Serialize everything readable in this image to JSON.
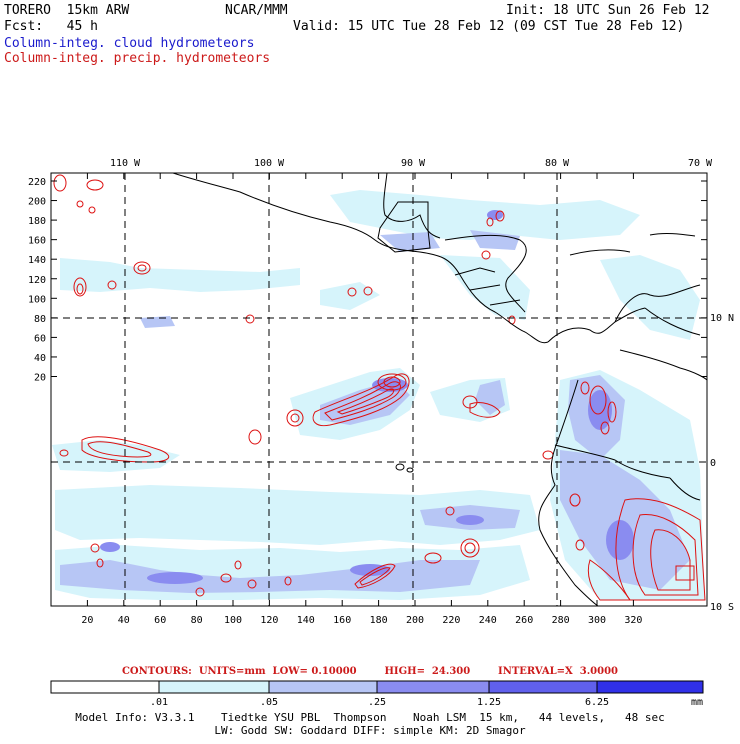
{
  "header": {
    "model": "TORERO  15km ARW",
    "org": "NCAR/MMM",
    "init": "Init: 18 UTC Sun 26 Feb 12",
    "fcst": "Fcst:   45 h",
    "valid": "Valid: 15 UTC Tue 28 Feb 12 (09 CST Tue 28 Feb 12)",
    "field1": "Column-integ. cloud hydrometeors",
    "field2": "Column-integ. precip. hydrometeors"
  },
  "map": {
    "lon_labels": [
      "110 W",
      "100 W",
      "90 W",
      "80 W",
      "70 W"
    ],
    "lat_labels": [
      "10 N",
      "0",
      "10 S"
    ],
    "x_ticks": [
      "20",
      "40",
      "60",
      "80",
      "100",
      "120",
      "140",
      "160",
      "180",
      "200",
      "220",
      "240",
      "260",
      "280",
      "300",
      "320"
    ],
    "y_ticks": [
      "220",
      "200",
      "180",
      "160",
      "140",
      "120",
      "100",
      "80",
      "60",
      "40",
      "20"
    ],
    "colors": {
      "shade1": "#d6f4fb",
      "shade2": "#b7c6f5",
      "shade3": "#8a8cf0",
      "shade4": "#6060ec",
      "shade5": "#3030e8",
      "contour": "#dd1111"
    }
  },
  "contour_info": {
    "text": "CONTOURS:  UNITS=mm  LOW= 0.10000        HIGH=  24.300        INTERVAL=X  3.0000"
  },
  "colorbar": {
    "labels": [
      ".01",
      ".05",
      ".25",
      "1.25",
      "6.25"
    ],
    "unit": "mm",
    "colors": [
      "#ffffff",
      "#d6f4fb",
      "#b7c6f5",
      "#8a8cf0",
      "#6060ec",
      "#3030e8"
    ]
  },
  "footer": {
    "line1": "Model Info: V3.3.1    Tiedtke YSU PBL  Thompson    Noah LSM  15 km,   44 levels,   48 sec",
    "line2": "LW: Godd SW: Goddard DIFF: simple KM: 2D Smagor"
  }
}
